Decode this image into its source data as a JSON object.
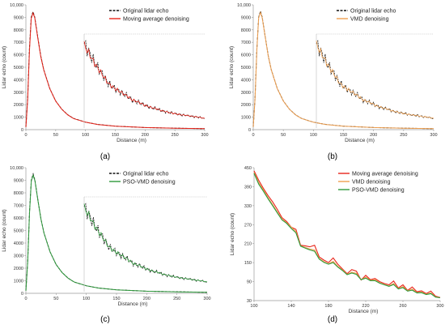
{
  "colors": {
    "original": "#111111",
    "moving_average": "#e8241a",
    "vmd": "#f0a050",
    "pso_vmd": "#2e9a3c",
    "axis": "#9a9a9a",
    "inset_border": "#bdbdbd"
  },
  "chart_data": [
    {
      "panel_label": "(a)",
      "type": "line",
      "xlabel": "Distance (m)",
      "ylabel": "Lidar echo  (count)",
      "xlim": [
        0,
        300
      ],
      "ylim": [
        0,
        10000
      ],
      "xticks": [
        "0",
        "50",
        "100",
        "150",
        "200",
        "250",
        "300"
      ],
      "yticks": [
        "0",
        "1000",
        "2000",
        "3000",
        "4000",
        "5000",
        "6000",
        "7000",
        "8000",
        "9000",
        "10,000"
      ],
      "legend_position": "top-right",
      "series": [
        {
          "name": "Original lidar echo",
          "style": "dashed",
          "color_key": "original",
          "x": [
            0,
            3,
            6,
            9,
            12,
            15,
            20,
            25,
            30,
            40,
            50,
            60,
            70,
            80,
            100,
            120,
            150,
            200,
            250,
            300
          ],
          "y": [
            200,
            2500,
            6500,
            9000,
            9450,
            9000,
            7400,
            5900,
            4800,
            3300,
            2300,
            1650,
            1200,
            900,
            600,
            420,
            280,
            170,
            120,
            80
          ]
        },
        {
          "name": "Moving average denoising",
          "style": "solid",
          "color_key": "moving_average",
          "x": [
            0,
            3,
            6,
            9,
            12,
            15,
            20,
            25,
            30,
            40,
            50,
            60,
            70,
            80,
            100,
            120,
            150,
            200,
            250,
            300
          ],
          "y": [
            200,
            2400,
            6300,
            8900,
            9350,
            8950,
            7350,
            5850,
            4780,
            3280,
            2290,
            1640,
            1190,
            890,
            595,
            415,
            278,
            168,
            118,
            78
          ]
        }
      ],
      "inset": {
        "xlim": [
          100,
          300
        ],
        "ylim": [
          0,
          7800
        ],
        "series": [
          {
            "name": "Original lidar echo",
            "color_key": "original",
            "x": [
              100,
              110,
              120,
              130,
              140,
              150,
              160,
              170,
              180,
              190,
              200,
              210,
              220,
              230,
              240,
              250,
              260,
              270,
              280,
              290,
              300
            ],
            "y": [
              7000,
              6100,
              5200,
              4500,
              3700,
              3300,
              3000,
              2700,
              2300,
              2150,
              1900,
              1700,
              1600,
              1400,
              1300,
              1200,
              1100,
              1050,
              950,
              900,
              800
            ]
          },
          {
            "name": "Moving average denoising",
            "color_key": "moving_average",
            "x": [
              100,
              110,
              120,
              130,
              140,
              150,
              160,
              170,
              180,
              190,
              200,
              210,
              220,
              230,
              240,
              250,
              260,
              270,
              280,
              290,
              300
            ],
            "y": [
              6900,
              6000,
              5150,
              4450,
              3700,
              3300,
              3000,
              2700,
              2320,
              2150,
              1900,
              1720,
              1600,
              1420,
              1300,
              1200,
              1100,
              1050,
              960,
              900,
              800
            ]
          }
        ]
      }
    },
    {
      "panel_label": "(b)",
      "type": "line",
      "xlabel": "Distance (m)",
      "ylabel": "Lidar echo  (count)",
      "xlim": [
        0,
        300
      ],
      "ylim": [
        0,
        10000
      ],
      "xticks": [
        "0",
        "50",
        "100",
        "150",
        "200",
        "250",
        "300"
      ],
      "yticks": [
        "0",
        "1000",
        "2000",
        "3000",
        "4000",
        "5000",
        "6000",
        "7000",
        "8000",
        "9000",
        "10,000"
      ],
      "legend_position": "top-right",
      "series": [
        {
          "name": "Original lidar echo",
          "style": "dashed",
          "color_key": "original",
          "x": [
            0,
            3,
            6,
            9,
            12,
            15,
            20,
            25,
            30,
            40,
            50,
            60,
            70,
            80,
            100,
            120,
            150,
            200,
            250,
            300
          ],
          "y": [
            200,
            2500,
            6500,
            9000,
            9500,
            9000,
            7400,
            5900,
            4800,
            3300,
            2300,
            1650,
            1200,
            900,
            600,
            420,
            280,
            170,
            120,
            80
          ]
        },
        {
          "name": "VMD denoising",
          "style": "solid",
          "color_key": "vmd",
          "x": [
            0,
            3,
            6,
            9,
            12,
            15,
            20,
            25,
            30,
            40,
            50,
            60,
            70,
            80,
            100,
            120,
            150,
            200,
            250,
            300
          ],
          "y": [
            200,
            2450,
            6400,
            8950,
            9400,
            8950,
            7380,
            5880,
            4790,
            3290,
            2295,
            1645,
            1195,
            895,
            598,
            418,
            279,
            169,
            119,
            79
          ]
        }
      ],
      "inset": {
        "xlim": [
          100,
          300
        ],
        "ylim": [
          0,
          7800
        ],
        "series": [
          {
            "name": "Original lidar echo",
            "color_key": "original",
            "x": [
              100,
              110,
              120,
              130,
              140,
              150,
              160,
              170,
              180,
              190,
              200,
              210,
              220,
              230,
              240,
              250,
              260,
              270,
              280,
              290,
              300
            ],
            "y": [
              7000,
              6100,
              5200,
              4500,
              3700,
              3300,
              3000,
              2700,
              2300,
              2150,
              1900,
              1700,
              1600,
              1400,
              1300,
              1200,
              1100,
              1050,
              950,
              900,
              800
            ]
          },
          {
            "name": "VMD denoising",
            "color_key": "vmd",
            "x": [
              100,
              110,
              120,
              130,
              140,
              150,
              160,
              170,
              180,
              190,
              200,
              210,
              220,
              230,
              240,
              250,
              260,
              270,
              280,
              290,
              300
            ],
            "y": [
              6950,
              6050,
              5180,
              4480,
              3700,
              3300,
              3000,
              2700,
              2310,
              2150,
              1900,
              1710,
              1600,
              1410,
              1300,
              1200,
              1100,
              1050,
              955,
              900,
              800
            ]
          }
        ]
      }
    },
    {
      "panel_label": "(c)",
      "type": "line",
      "xlabel": "Distance (m)",
      "ylabel": "Lidar echo  (count)",
      "xlim": [
        0,
        300
      ],
      "ylim": [
        0,
        10000
      ],
      "xticks": [
        "0",
        "50",
        "100",
        "150",
        "200",
        "250",
        "300"
      ],
      "yticks": [
        "0",
        "1000",
        "2000",
        "3000",
        "4000",
        "5000",
        "6000",
        "7000",
        "8000",
        "9000",
        "10,000"
      ],
      "legend_position": "top-right",
      "series": [
        {
          "name": "Original lidar echo",
          "style": "dashed",
          "color_key": "original",
          "x": [
            0,
            3,
            6,
            9,
            12,
            15,
            20,
            25,
            30,
            40,
            50,
            60,
            70,
            80,
            100,
            120,
            150,
            200,
            250,
            300
          ],
          "y": [
            200,
            2500,
            6500,
            9000,
            9500,
            9000,
            7400,
            5900,
            4800,
            3300,
            2300,
            1650,
            1200,
            900,
            600,
            420,
            280,
            170,
            120,
            80
          ]
        },
        {
          "name": "PSO-VMD denoising",
          "style": "solid",
          "color_key": "pso_vmd",
          "x": [
            0,
            3,
            6,
            9,
            12,
            15,
            20,
            25,
            30,
            40,
            50,
            60,
            70,
            80,
            100,
            120,
            150,
            200,
            250,
            300
          ],
          "y": [
            200,
            2450,
            6400,
            8950,
            9400,
            8950,
            7380,
            5880,
            4790,
            3290,
            2295,
            1645,
            1195,
            895,
            598,
            418,
            279,
            169,
            119,
            79
          ]
        }
      ],
      "inset": {
        "xlim": [
          100,
          300
        ],
        "ylim": [
          0,
          7800
        ],
        "series": [
          {
            "name": "Original lidar echo",
            "color_key": "original",
            "x": [
              100,
              110,
              120,
              130,
              140,
              150,
              160,
              170,
              180,
              190,
              200,
              210,
              220,
              230,
              240,
              250,
              260,
              270,
              280,
              290,
              300
            ],
            "y": [
              7000,
              6100,
              5200,
              4500,
              3700,
              3300,
              3000,
              2700,
              2300,
              2150,
              1900,
              1700,
              1600,
              1400,
              1300,
              1200,
              1100,
              1050,
              950,
              900,
              800
            ]
          },
          {
            "name": "PSO-VMD denoising",
            "color_key": "pso_vmd",
            "x": [
              100,
              110,
              120,
              130,
              140,
              150,
              160,
              170,
              180,
              190,
              200,
              210,
              220,
              230,
              240,
              250,
              260,
              270,
              280,
              290,
              300
            ],
            "y": [
              6950,
              6050,
              5180,
              4480,
              3700,
              3300,
              3000,
              2700,
              2310,
              2150,
              1900,
              1710,
              1600,
              1410,
              1300,
              1200,
              1100,
              1050,
              955,
              900,
              800
            ]
          }
        ]
      }
    },
    {
      "panel_label": "(d)",
      "type": "line",
      "xlabel": "Distance (m)",
      "ylabel": "Lidar echo  (count)",
      "xlim": [
        100,
        300
      ],
      "ylim": [
        30,
        450
      ],
      "xticks": [
        "100",
        "140",
        "180",
        "220",
        "260",
        "300"
      ],
      "yticks": [
        "30",
        "90",
        "150",
        "210",
        "270",
        "330",
        "390",
        "450"
      ],
      "legend_position": "top-right",
      "series": [
        {
          "name": "Moving average denoising",
          "style": "solid",
          "color_key": "moving_average",
          "x": [
            100,
            105,
            110,
            115,
            120,
            125,
            130,
            135,
            140,
            145,
            150,
            155,
            160,
            165,
            170,
            175,
            180,
            185,
            190,
            195,
            200,
            205,
            210,
            215,
            220,
            225,
            230,
            235,
            240,
            245,
            250,
            255,
            260,
            265,
            270,
            275,
            280,
            285,
            290,
            295,
            300
          ],
          "y": [
            440,
            410,
            385,
            362,
            342,
            318,
            292,
            280,
            262,
            255,
            205,
            203,
            200,
            205,
            168,
            158,
            150,
            165,
            145,
            130,
            115,
            128,
            123,
            95,
            110,
            96,
            100,
            90,
            84,
            80,
            92,
            70,
            80,
            62,
            73,
            58,
            61,
            52,
            60,
            44,
            40
          ]
        },
        {
          "name": "VMD denoising",
          "style": "solid",
          "color_key": "vmd",
          "x": [
            100,
            105,
            110,
            115,
            120,
            125,
            130,
            135,
            140,
            145,
            150,
            155,
            160,
            165,
            170,
            175,
            180,
            185,
            190,
            195,
            200,
            205,
            210,
            215,
            220,
            225,
            230,
            235,
            240,
            245,
            250,
            255,
            260,
            265,
            270,
            275,
            280,
            285,
            290,
            295,
            300
          ],
          "y": [
            435,
            402,
            380,
            355,
            333,
            310,
            287,
            276,
            262,
            248,
            203,
            198,
            193,
            190,
            163,
            153,
            146,
            154,
            138,
            127,
            113,
            120,
            116,
            96,
            104,
            94,
            96,
            86,
            81,
            76,
            84,
            68,
            74,
            61,
            66,
            55,
            57,
            50,
            54,
            42,
            39
          ]
        },
        {
          "name": "PSO-VMD denoising",
          "style": "solid",
          "color_key": "pso_vmd",
          "x": [
            100,
            105,
            110,
            115,
            120,
            125,
            130,
            135,
            140,
            145,
            150,
            155,
            160,
            165,
            170,
            175,
            180,
            185,
            190,
            195,
            200,
            205,
            210,
            215,
            220,
            225,
            230,
            235,
            240,
            245,
            250,
            255,
            260,
            265,
            270,
            275,
            280,
            285,
            290,
            295,
            300
          ],
          "y": [
            432,
            398,
            376,
            352,
            330,
            307,
            285,
            274,
            258,
            244,
            202,
            196,
            190,
            186,
            161,
            151,
            145,
            150,
            136,
            125,
            112,
            117,
            113,
            96,
            101,
            93,
            93,
            85,
            80,
            75,
            81,
            67,
            71,
            60,
            63,
            54,
            55,
            49,
            52,
            41,
            39
          ]
        }
      ]
    }
  ]
}
